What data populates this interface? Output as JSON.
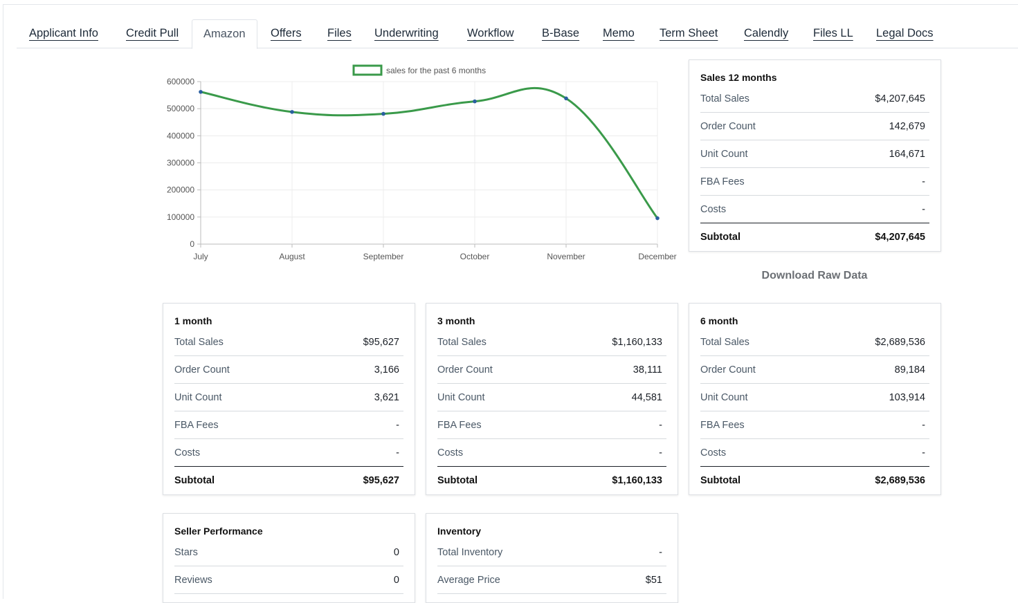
{
  "tabs": [
    {
      "label": "Applicant Info",
      "active": false
    },
    {
      "label": "Credit Pull",
      "active": false
    },
    {
      "label": "Amazon",
      "active": true
    },
    {
      "label": "Offers",
      "active": false
    },
    {
      "label": "Files",
      "active": false
    },
    {
      "label": "Underwriting",
      "active": false
    },
    {
      "label": "Workflow",
      "active": false
    },
    {
      "label": "B-Base",
      "active": false
    },
    {
      "label": "Memo",
      "active": false
    },
    {
      "label": "Term Sheet",
      "active": false
    },
    {
      "label": "Calendly",
      "active": false
    },
    {
      "label": "Files LL",
      "active": false
    },
    {
      "label": "Legal Docs",
      "active": false
    }
  ],
  "chart_data": {
    "type": "line",
    "categories": [
      "July",
      "August",
      "September",
      "October",
      "November",
      "December"
    ],
    "series": [
      {
        "name": "sales for the past 6 months",
        "values": [
          562000,
          488000,
          481000,
          527000,
          538000,
          95627
        ],
        "color": "#3a9a4a"
      }
    ],
    "y_ticks": [
      "0",
      "100000",
      "200000",
      "300000",
      "400000",
      "500000",
      "600000"
    ],
    "ylim": [
      0,
      600000
    ],
    "legend_position": "top-center",
    "grid": true,
    "point_color": "#2a5fa0"
  },
  "summary_12": {
    "title": "Sales 12 months",
    "rows": [
      {
        "label": "Total Sales",
        "value": "$4,207,645"
      },
      {
        "label": "Order Count",
        "value": "142,679"
      },
      {
        "label": "Unit Count",
        "value": "164,671"
      },
      {
        "label": "FBA Fees",
        "value": "-"
      },
      {
        "label": "Costs",
        "value": "-"
      }
    ],
    "subtotal_label": "Subtotal",
    "subtotal_value": "$4,207,645"
  },
  "download_label": "Download Raw Data",
  "month_1": {
    "title": "1 month",
    "rows": [
      {
        "label": "Total Sales",
        "value": "$95,627"
      },
      {
        "label": "Order Count",
        "value": "3,166"
      },
      {
        "label": "Unit Count",
        "value": "3,621"
      },
      {
        "label": "FBA Fees",
        "value": "-"
      },
      {
        "label": "Costs",
        "value": "-"
      }
    ],
    "subtotal_label": "Subtotal",
    "subtotal_value": "$95,627"
  },
  "month_3": {
    "title": "3 month",
    "rows": [
      {
        "label": "Total Sales",
        "value": "$1,160,133"
      },
      {
        "label": "Order Count",
        "value": "38,111"
      },
      {
        "label": "Unit Count",
        "value": "44,581"
      },
      {
        "label": "FBA Fees",
        "value": "-"
      },
      {
        "label": "Costs",
        "value": "-"
      }
    ],
    "subtotal_label": "Subtotal",
    "subtotal_value": "$1,160,133"
  },
  "month_6": {
    "title": "6 month",
    "rows": [
      {
        "label": "Total Sales",
        "value": "$2,689,536"
      },
      {
        "label": "Order Count",
        "value": "89,184"
      },
      {
        "label": "Unit Count",
        "value": "103,914"
      },
      {
        "label": "FBA Fees",
        "value": "-"
      },
      {
        "label": "Costs",
        "value": "-"
      }
    ],
    "subtotal_label": "Subtotal",
    "subtotal_value": "$2,689,536"
  },
  "seller_performance": {
    "title": "Seller Performance",
    "rows": [
      {
        "label": "Stars",
        "value": "0"
      },
      {
        "label": "Reviews",
        "value": "0"
      }
    ]
  },
  "inventory": {
    "title": "Inventory",
    "rows": [
      {
        "label": "Total Inventory",
        "value": "-"
      },
      {
        "label": "Average Price",
        "value": "$51"
      }
    ]
  }
}
